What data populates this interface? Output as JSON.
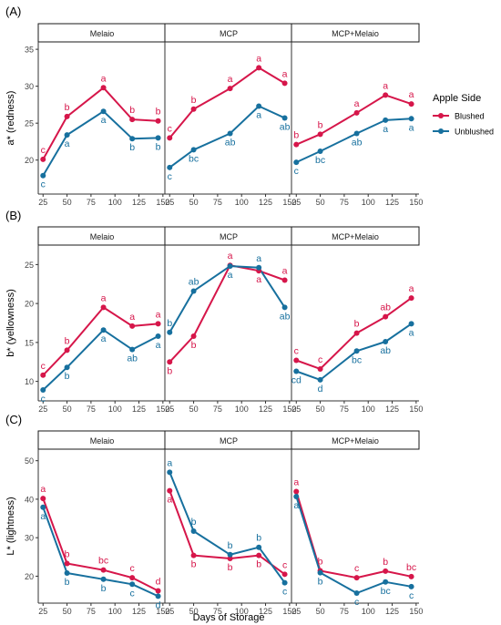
{
  "figure": {
    "x_axis_label": "Days of Storage"
  },
  "legend": {
    "title": "Apple Side",
    "entries": [
      {
        "name": "Blushed",
        "color": "#d6164a"
      },
      {
        "name": "Unblushed",
        "color": "#17709e"
      }
    ]
  },
  "chart_data": [
    {
      "type": "line",
      "panel_label": "(A)",
      "ylabel": "a* (redness)",
      "ylim": [
        15.4,
        36
      ],
      "yticks": [
        20,
        25,
        30,
        35
      ],
      "xlim": [
        20,
        153
      ],
      "xticks": [
        25,
        50,
        75,
        100,
        125,
        150
      ],
      "facets": [
        {
          "title": "Melaio",
          "series": [
            {
              "name": "Blushed",
              "x": [
                25,
                50,
                88,
                118,
                145
              ],
              "y": [
                20.1,
                25.9,
                29.8,
                25.5,
                25.3
              ],
              "letters": [
                "c",
                "b",
                "a",
                "b",
                "b"
              ]
            },
            {
              "name": "Unblushed",
              "x": [
                25,
                50,
                88,
                118,
                145
              ],
              "y": [
                17.9,
                23.4,
                26.6,
                22.9,
                23.0
              ],
              "letters": [
                "c",
                "a",
                "a",
                "b",
                "b"
              ]
            }
          ]
        },
        {
          "title": "MCP",
          "series": [
            {
              "name": "Blushed",
              "x": [
                25,
                50,
                88,
                118,
                145
              ],
              "y": [
                23.0,
                26.9,
                29.7,
                32.5,
                30.4
              ],
              "letters": [
                "c",
                "b",
                "a",
                "a",
                "a"
              ]
            },
            {
              "name": "Unblushed",
              "x": [
                25,
                50,
                88,
                118,
                145
              ],
              "y": [
                19.0,
                21.4,
                23.6,
                27.3,
                25.7
              ],
              "letters": [
                "c",
                "bc",
                "ab",
                "a",
                "ab"
              ]
            }
          ]
        },
        {
          "title": "MCP+Melaio",
          "series": [
            {
              "name": "Blushed",
              "x": [
                25,
                50,
                88,
                118,
                145
              ],
              "y": [
                22.1,
                23.5,
                26.4,
                28.8,
                27.6
              ],
              "letters": [
                "b",
                "b",
                "a",
                "a",
                "a"
              ]
            },
            {
              "name": "Unblushed",
              "x": [
                25,
                50,
                88,
                118,
                145
              ],
              "y": [
                19.7,
                21.2,
                23.6,
                25.4,
                25.6
              ],
              "letters": [
                "c",
                "bc",
                "ab",
                "a",
                "a"
              ]
            }
          ]
        }
      ]
    },
    {
      "type": "line",
      "panel_label": "(B)",
      "ylabel": "b* (yellowness)",
      "ylim": [
        7.5,
        27.5
      ],
      "yticks": [
        10,
        15,
        20,
        25
      ],
      "xlim": [
        20,
        153
      ],
      "xticks": [
        25,
        50,
        75,
        100,
        125,
        150
      ],
      "facets": [
        {
          "title": "Melaio",
          "series": [
            {
              "name": "Blushed",
              "x": [
                25,
                50,
                88,
                118,
                145
              ],
              "y": [
                10.8,
                14.0,
                19.5,
                17.1,
                17.4
              ],
              "letters": [
                "c",
                "b",
                "a",
                "a",
                "a"
              ]
            },
            {
              "name": "Unblushed",
              "x": [
                25,
                50,
                88,
                118,
                145
              ],
              "y": [
                8.9,
                11.8,
                16.6,
                14.1,
                15.8
              ],
              "letters": [
                "c",
                "b",
                "a",
                "ab",
                "a"
              ]
            }
          ]
        },
        {
          "title": "MCP",
          "series": [
            {
              "name": "Blushed",
              "x": [
                25,
                50,
                88,
                118,
                145
              ],
              "y": [
                12.5,
                15.8,
                24.9,
                24.2,
                23.0
              ],
              "letters": [
                "b",
                "b",
                "a",
                "a",
                "a"
              ]
            },
            {
              "name": "Unblushed",
              "x": [
                25,
                50,
                88,
                118,
                145
              ],
              "y": [
                16.3,
                21.6,
                24.8,
                24.6,
                19.5
              ],
              "letters": [
                "b",
                "ab",
                "a",
                "a",
                "ab"
              ]
            }
          ]
        },
        {
          "title": "MCP+Melaio",
          "series": [
            {
              "name": "Blushed",
              "x": [
                25,
                50,
                88,
                118,
                145
              ],
              "y": [
                12.7,
                11.6,
                16.2,
                18.3,
                20.7
              ],
              "letters": [
                "c",
                "c",
                "b",
                "ab",
                "a"
              ]
            },
            {
              "name": "Unblushed",
              "x": [
                25,
                50,
                88,
                118,
                145
              ],
              "y": [
                11.3,
                10.2,
                13.9,
                15.1,
                17.4
              ],
              "letters": [
                "cd",
                "d",
                "bc",
                "ab",
                "a"
              ]
            }
          ]
        }
      ]
    },
    {
      "type": "line",
      "panel_label": "(C)",
      "ylabel": "L* (lightness)",
      "ylim": [
        13,
        53
      ],
      "yticks": [
        20,
        30,
        40,
        50
      ],
      "xlim": [
        20,
        153
      ],
      "xticks": [
        25,
        50,
        75,
        100,
        125,
        150
      ],
      "facets": [
        {
          "title": "Melaio",
          "series": [
            {
              "name": "Blushed",
              "x": [
                25,
                50,
                88,
                118,
                145
              ],
              "y": [
                40.2,
                23.3,
                21.6,
                19.6,
                16.2
              ],
              "letters": [
                "a",
                "b",
                "bc",
                "c",
                "d"
              ]
            },
            {
              "name": "Unblushed",
              "x": [
                25,
                50,
                88,
                118,
                145
              ],
              "y": [
                37.9,
                20.8,
                19.2,
                17.9,
                14.8
              ],
              "letters": [
                "a",
                "b",
                "b",
                "c",
                "d"
              ]
            }
          ]
        },
        {
          "title": "MCP",
          "series": [
            {
              "name": "Blushed",
              "x": [
                25,
                50,
                88,
                118,
                145
              ],
              "y": [
                42.2,
                25.4,
                24.6,
                25.4,
                20.5
              ],
              "letters": [
                "a",
                "b",
                "b",
                "b",
                "c"
              ]
            },
            {
              "name": "Unblushed",
              "x": [
                25,
                50,
                88,
                118,
                145
              ],
              "y": [
                47.0,
                31.7,
                25.6,
                27.5,
                18.3
              ],
              "letters": [
                "a",
                "b",
                "b",
                "b",
                "c"
              ]
            }
          ]
        },
        {
          "title": "MCP+Melaio",
          "series": [
            {
              "name": "Blushed",
              "x": [
                25,
                50,
                88,
                118,
                145
              ],
              "y": [
                42.0,
                21.4,
                19.6,
                21.3,
                19.9
              ],
              "letters": [
                "a",
                "b",
                "c",
                "b",
                "bc"
              ]
            },
            {
              "name": "Unblushed",
              "x": [
                25,
                50,
                88,
                118,
                145
              ],
              "y": [
                40.7,
                20.9,
                15.6,
                18.5,
                17.3
              ],
              "letters": [
                "a",
                "b",
                "c",
                "bc",
                "c"
              ]
            }
          ]
        }
      ]
    }
  ]
}
